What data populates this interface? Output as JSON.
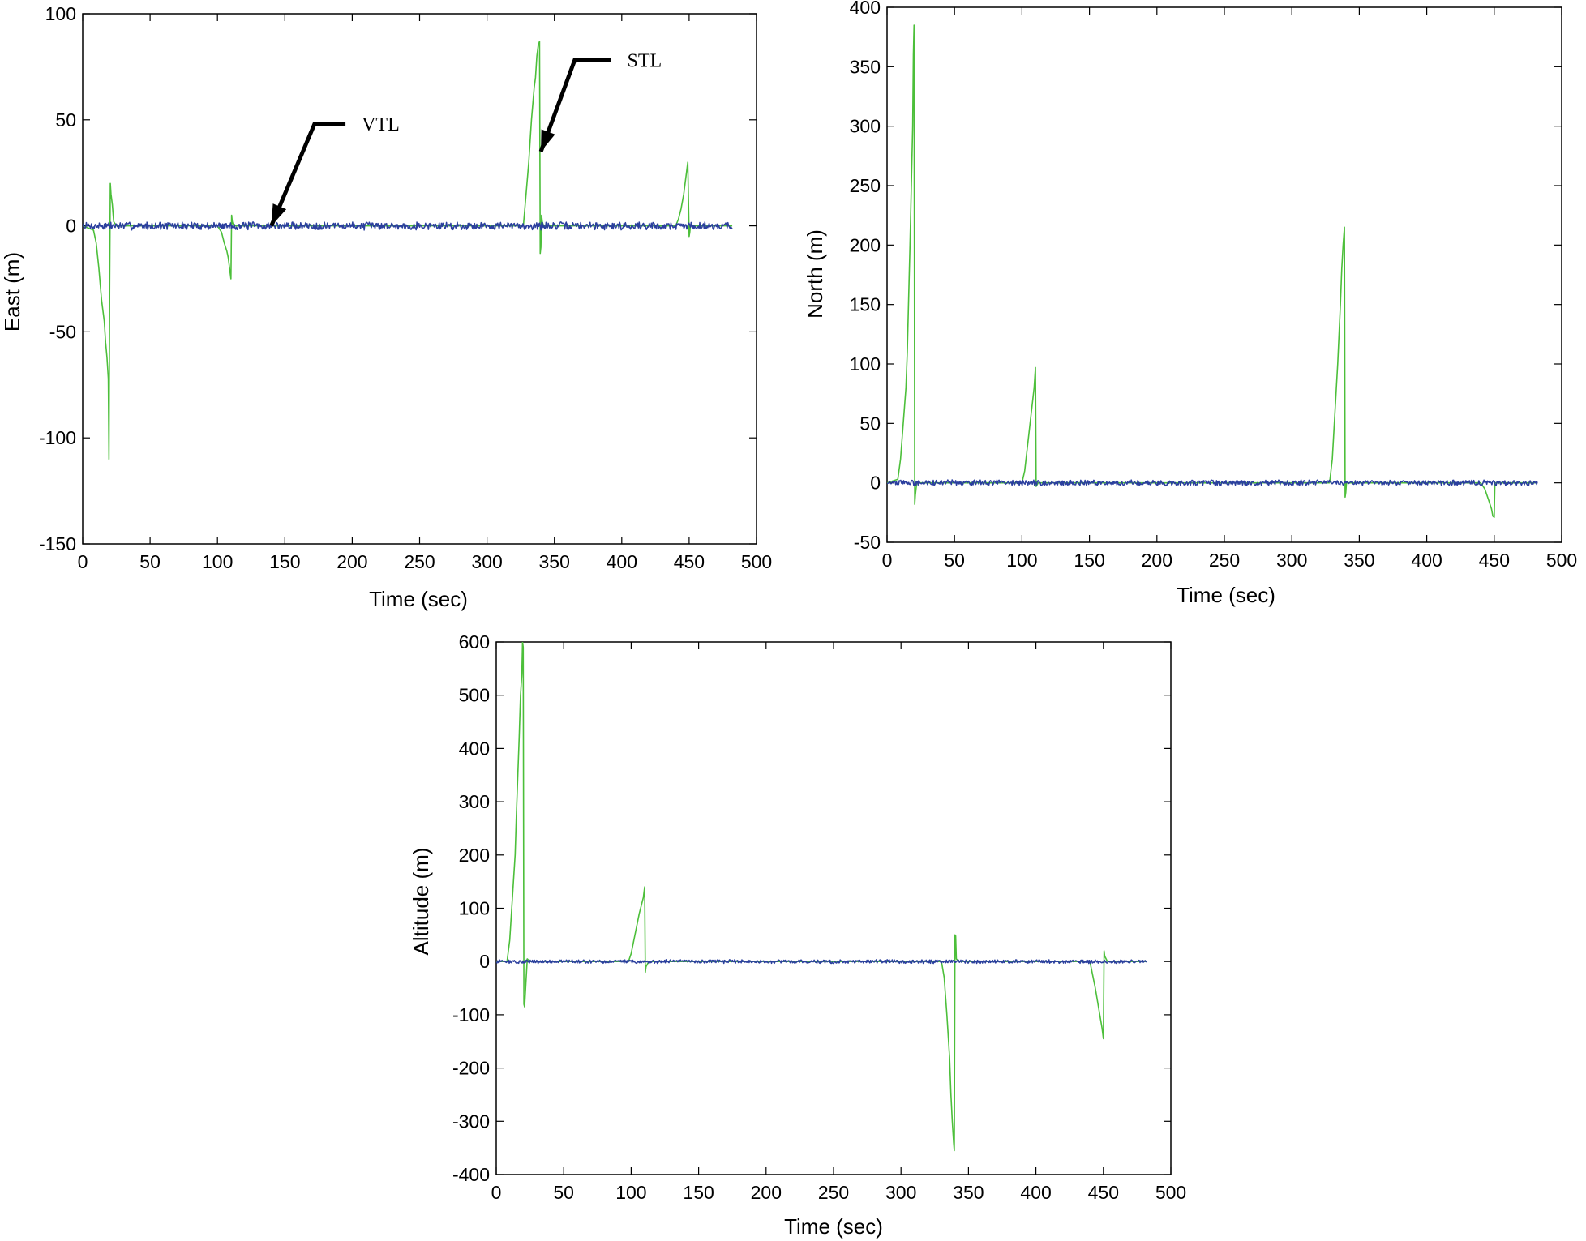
{
  "chart_data": [
    {
      "type": "line",
      "id": "east",
      "xlabel": "Time (sec)",
      "ylabel": "East (m)",
      "xlim": [
        0,
        500
      ],
      "ylim": [
        -150,
        100
      ],
      "xticks": [
        0,
        50,
        100,
        150,
        200,
        250,
        300,
        350,
        400,
        450,
        500
      ],
      "yticks": [
        -150,
        -100,
        -50,
        0,
        50,
        100
      ],
      "xtick_labels": [
        "0",
        "50",
        "100",
        "150",
        "200",
        "250",
        "300",
        "350",
        "400",
        "450",
        "500"
      ],
      "ytick_labels": [
        "-150",
        "-100",
        "-50",
        "0",
        "50",
        "100"
      ],
      "series": [
        {
          "name": "STL",
          "color": "#4cbf3a",
          "x": [
            0,
            8,
            10,
            12,
            14,
            16,
            17,
            18,
            19,
            19.5,
            20,
            20.5,
            21,
            22,
            23,
            25,
            100,
            103,
            105,
            107,
            108,
            109,
            110,
            110.5,
            111,
            112,
            115,
            327,
            329,
            331,
            333,
            335,
            336,
            337,
            338,
            339,
            339.5,
            340,
            340.5,
            341,
            342,
            345,
            440,
            442,
            444,
            446,
            447,
            448,
            449,
            450,
            450.5,
            451,
            452,
            455,
            482
          ],
          "y": [
            0,
            -2,
            -8,
            -20,
            -35,
            -45,
            -55,
            -62,
            -72,
            -110,
            -30,
            20,
            15,
            10,
            2,
            0,
            0,
            -3,
            -8,
            -12,
            -15,
            -20,
            -25,
            5,
            2,
            0,
            0,
            0,
            15,
            30,
            50,
            65,
            70,
            80,
            85,
            87,
            -13,
            -10,
            5,
            2,
            0,
            0,
            0,
            3,
            8,
            15,
            20,
            25,
            30,
            -5,
            -3,
            0,
            0,
            0,
            0
          ]
        },
        {
          "name": "VTL",
          "color": "#2b3f9e",
          "noise_amplitude": 1.6,
          "x_range": [
            0,
            482
          ]
        }
      ],
      "annotations": [
        {
          "text": "VTL",
          "tip_x": 140,
          "tip_y": 0,
          "knee_x": 172,
          "knee_y": 48,
          "end_x": 195,
          "end_y": 48
        },
        {
          "text": "STL",
          "tip_x": 340,
          "tip_y": 35,
          "knee_x": 365,
          "knee_y": 78,
          "end_x": 392,
          "end_y": 78
        }
      ]
    },
    {
      "type": "line",
      "id": "north",
      "xlabel": "Time (sec)",
      "ylabel": "North (m)",
      "xlim": [
        0,
        500
      ],
      "ylim": [
        -50,
        400
      ],
      "xticks": [
        0,
        50,
        100,
        150,
        200,
        250,
        300,
        350,
        400,
        450,
        500
      ],
      "yticks": [
        -50,
        0,
        50,
        100,
        150,
        200,
        250,
        300,
        350,
        400
      ],
      "xtick_labels": [
        "0",
        "50",
        "100",
        "150",
        "200",
        "250",
        "300",
        "350",
        "400",
        "450",
        "500"
      ],
      "ytick_labels": [
        "-50",
        "0",
        "50",
        "100",
        "150",
        "200",
        "250",
        "300",
        "350",
        "400"
      ],
      "series": [
        {
          "name": "STL",
          "color": "#4cbf3a",
          "x": [
            0,
            8,
            10,
            12,
            14,
            15,
            16,
            17,
            18,
            19,
            19.5,
            20,
            20.5,
            21,
            22,
            100,
            102,
            104,
            106,
            108,
            109,
            110,
            110.5,
            111,
            112,
            328,
            330,
            332,
            334,
            336,
            337,
            338,
            339,
            339.5,
            340,
            340.5,
            341,
            440,
            443,
            446,
            448,
            449,
            450,
            450.5,
            451,
            482
          ],
          "y": [
            0,
            3,
            20,
            50,
            80,
            110,
            155,
            200,
            250,
            300,
            360,
            385,
            -18,
            -10,
            0,
            0,
            10,
            30,
            50,
            70,
            80,
            97,
            -3,
            -2,
            0,
            0,
            20,
            60,
            100,
            150,
            180,
            200,
            215,
            -12,
            -8,
            0,
            0,
            0,
            -5,
            -15,
            -22,
            -28,
            -29,
            0,
            0,
            0
          ],
          "dense": true
        },
        {
          "name": "VTL",
          "color": "#2b3f9e",
          "noise_amplitude": 2,
          "x_range": [
            0,
            482
          ]
        }
      ],
      "annotations": []
    },
    {
      "type": "line",
      "id": "altitude",
      "xlabel": "Time (sec)",
      "ylabel": "Altitude (m)",
      "xlim": [
        0,
        500
      ],
      "ylim": [
        -400,
        600
      ],
      "xticks": [
        0,
        50,
        100,
        150,
        200,
        250,
        300,
        350,
        400,
        450,
        500
      ],
      "yticks": [
        -400,
        -300,
        -200,
        -100,
        0,
        100,
        200,
        300,
        400,
        500,
        600
      ],
      "xtick_labels": [
        "0",
        "50",
        "100",
        "150",
        "200",
        "250",
        "300",
        "350",
        "400",
        "450",
        "500"
      ],
      "ytick_labels": [
        "-400",
        "-300",
        "-200",
        "-100",
        "0",
        "100",
        "200",
        "300",
        "400",
        "500",
        "600"
      ],
      "series": [
        {
          "name": "STL",
          "color": "#4cbf3a",
          "x": [
            0,
            8,
            10,
            12,
            14,
            15,
            16,
            17,
            18,
            19,
            19.5,
            20,
            20.5,
            21,
            22,
            23,
            25,
            98,
            100,
            102,
            104,
            106,
            108,
            109,
            110,
            110.5,
            111,
            113,
            330,
            332,
            334,
            336,
            337,
            338,
            339,
            339.5,
            340,
            340.5,
            341,
            343,
            440,
            442,
            444,
            446,
            448,
            449,
            450,
            450.5,
            451,
            453,
            482
          ],
          "y": [
            0,
            0,
            40,
            120,
            200,
            280,
            350,
            420,
            500,
            540,
            600,
            590,
            -80,
            -85,
            -40,
            5,
            0,
            0,
            15,
            40,
            65,
            90,
            110,
            120,
            140,
            -20,
            -10,
            0,
            0,
            -30,
            -100,
            -180,
            -250,
            -300,
            -340,
            -355,
            50,
            48,
            5,
            0,
            0,
            -25,
            -50,
            -80,
            -110,
            -125,
            -145,
            20,
            10,
            0,
            0
          ],
          "dense": true
        },
        {
          "name": "VTL",
          "color": "#2b3f9e",
          "noise_amplitude": 3,
          "x_range": [
            0,
            482
          ]
        }
      ],
      "annotations": []
    }
  ]
}
